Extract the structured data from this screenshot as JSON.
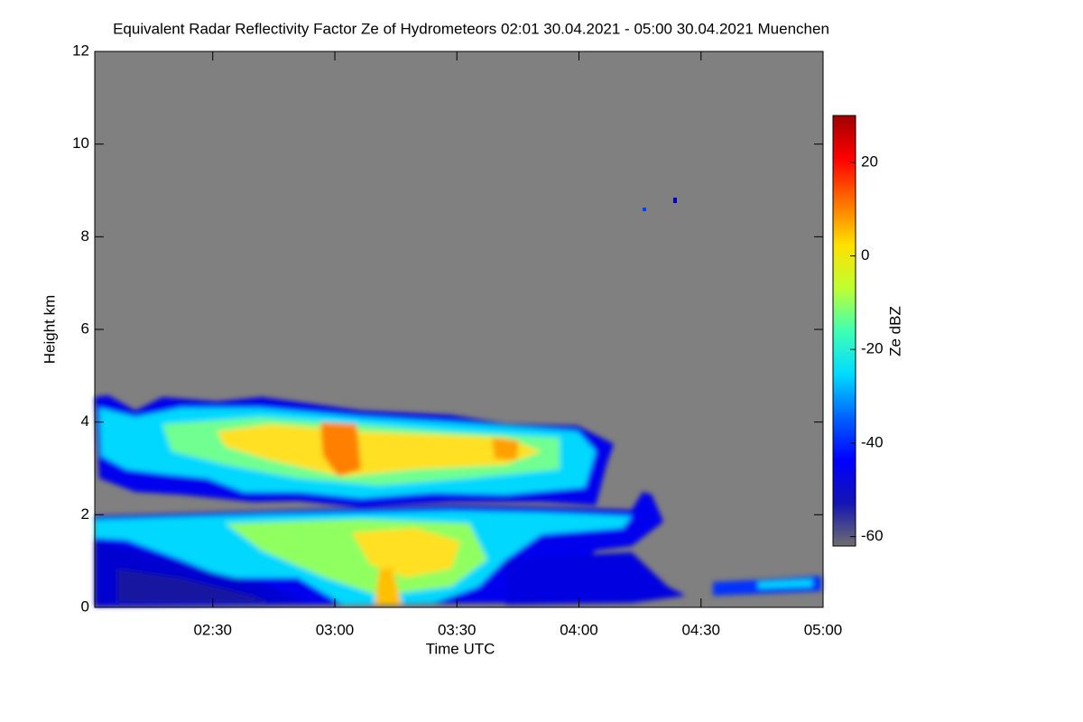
{
  "chart_data": {
    "type": "heatmap",
    "title": "Equivalent Radar Reflectivity Factor Ze of Hydrometeors   02:01 30.04.2021 - 05:00 30.04.2021 Muenchen",
    "x_label": "Time UTC",
    "y_label": "Height km",
    "colorbar_label": "Ze dBZ",
    "xlim": [
      121,
      300
    ],
    "xticks": [
      {
        "value": 150,
        "label": "02:30"
      },
      {
        "value": 180,
        "label": "03:00"
      },
      {
        "value": 210,
        "label": "03:30"
      },
      {
        "value": 240,
        "label": "04:00"
      },
      {
        "value": 270,
        "label": "04:30"
      },
      {
        "value": 300,
        "label": "05:00"
      }
    ],
    "ylim": [
      0,
      12
    ],
    "yticks": [
      0,
      2,
      4,
      6,
      8,
      10,
      12
    ],
    "clim": [
      -62,
      30
    ],
    "cticks": [
      -60,
      -40,
      -20,
      0,
      20
    ],
    "background": "#808080",
    "colormap": [
      "#6e6e6e",
      "#1414b4",
      "#0000ff",
      "#0064ff",
      "#00dcff",
      "#40ffb4",
      "#c0ff30",
      "#ffe000",
      "#ff7000",
      "#ff0000",
      "#a00000"
    ]
  }
}
